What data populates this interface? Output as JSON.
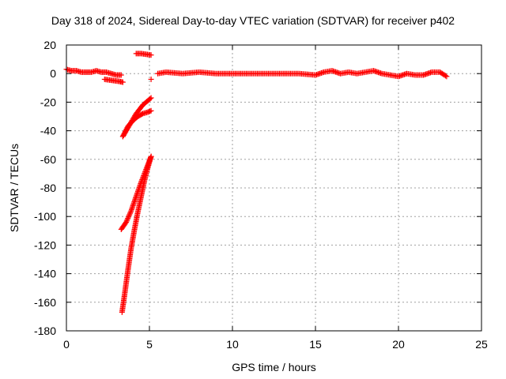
{
  "chart_data": {
    "type": "scatter",
    "title": "Day 318 of 2024, Sidereal Day-to-day VTEC variation (SDTVAR) for receiver p402",
    "xlabel": "GPS time / hours",
    "ylabel": "SDTVAR / TECUs",
    "xlim": [
      0,
      25
    ],
    "ylim": [
      -180,
      20
    ],
    "xticks": [
      0,
      5,
      10,
      15,
      20,
      25
    ],
    "yticks": [
      20,
      0,
      -20,
      -40,
      -60,
      -80,
      -100,
      -120,
      -140,
      -160,
      -180
    ],
    "grid": true,
    "marker": "plus",
    "color": "#ff0000",
    "series": [
      {
        "segments": [
          {
            "x": [
              0.0,
              0.3,
              0.6,
              0.9,
              1.2,
              1.5,
              1.8,
              2.1,
              2.4,
              2.7,
              3.0,
              3.3
            ],
            "y": [
              3,
              2,
              2,
              1,
              1,
              1,
              2,
              1,
              1,
              0,
              -1,
              -1
            ]
          },
          {
            "x": [
              2.3,
              2.6,
              2.9,
              3.2,
              3.4
            ],
            "y": [
              -4,
              -4.5,
              -5,
              -5.5,
              -6
            ]
          },
          {
            "x": [
              4.2,
              4.5,
              4.8,
              5.1
            ],
            "y": [
              14,
              14,
              13.5,
              13
            ]
          },
          {
            "x": [
              5.1
            ],
            "y": [
              -4
            ]
          },
          {
            "x": [
              5.5,
              6,
              7,
              8,
              9,
              10,
              11,
              12,
              13,
              14,
              15,
              15.5,
              16,
              16.5,
              17,
              17.5,
              18,
              18.5,
              19,
              19.5,
              20,
              20.5,
              21,
              21.5,
              22,
              22.5,
              22.9
            ],
            "y": [
              0,
              1,
              0,
              1,
              0,
              0,
              0,
              0,
              0,
              0,
              -1,
              1,
              2,
              0,
              1,
              0,
              1,
              2,
              0,
              -1,
              -2,
              0,
              -1,
              -1,
              1,
              1,
              -2
            ]
          },
          {
            "x": [
              3.4,
              3.7,
              4.0,
              4.3,
              4.6,
              4.9,
              5.1
            ],
            "y": [
              -44,
              -37,
              -33,
              -30,
              -28,
              -27,
              -26
            ]
          },
          {
            "x": [
              3.4,
              3.8,
              4.2,
              4.6,
              5.1
            ],
            "y": [
              -44,
              -36,
              -28,
              -22,
              -17
            ]
          },
          {
            "x": [
              3.3,
              3.6,
              3.9,
              4.2,
              4.5,
              4.8,
              5.0,
              5.1
            ],
            "y": [
              -109,
              -104,
              -96,
              -86,
              -76,
              -67,
              -61,
              -58
            ]
          },
          {
            "x": [
              3.35,
              3.5,
              3.7,
              3.9,
              4.1,
              4.3,
              4.5,
              4.7,
              4.9,
              5.1
            ],
            "y": [
              -167,
              -155,
              -138,
              -122,
              -109,
              -97,
              -86,
              -75,
              -66,
              -58
            ]
          }
        ]
      }
    ]
  }
}
